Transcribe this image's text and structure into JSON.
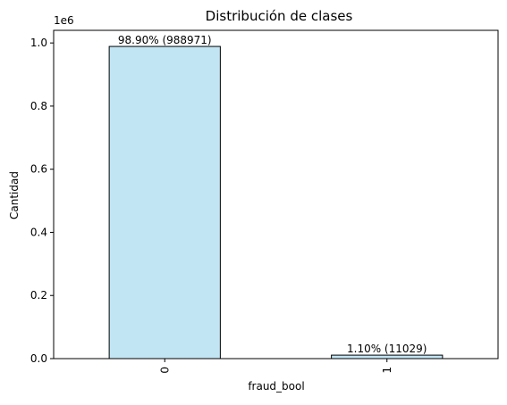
{
  "chart_data": {
    "type": "bar",
    "title": "Distribución de clases",
    "xlabel": "fraud_bool",
    "ylabel": "Cantidad",
    "y_offset_label": "1e6",
    "categories": [
      "0",
      "1"
    ],
    "values": [
      988971,
      11029
    ],
    "data_labels": [
      "98.90% (988971)",
      "1.10% (11029)"
    ],
    "ylim": [
      0,
      1040000
    ],
    "y_ticks": [
      0,
      200000,
      400000,
      600000,
      800000,
      1000000
    ],
    "y_tick_labels": [
      "0.0",
      "0.2",
      "0.4",
      "0.6",
      "0.8",
      "1.0"
    ],
    "bar_color": "#c2e5f4",
    "bar_edge_color": "#000000",
    "grid": false,
    "x_tick_rotation": "vertical"
  }
}
